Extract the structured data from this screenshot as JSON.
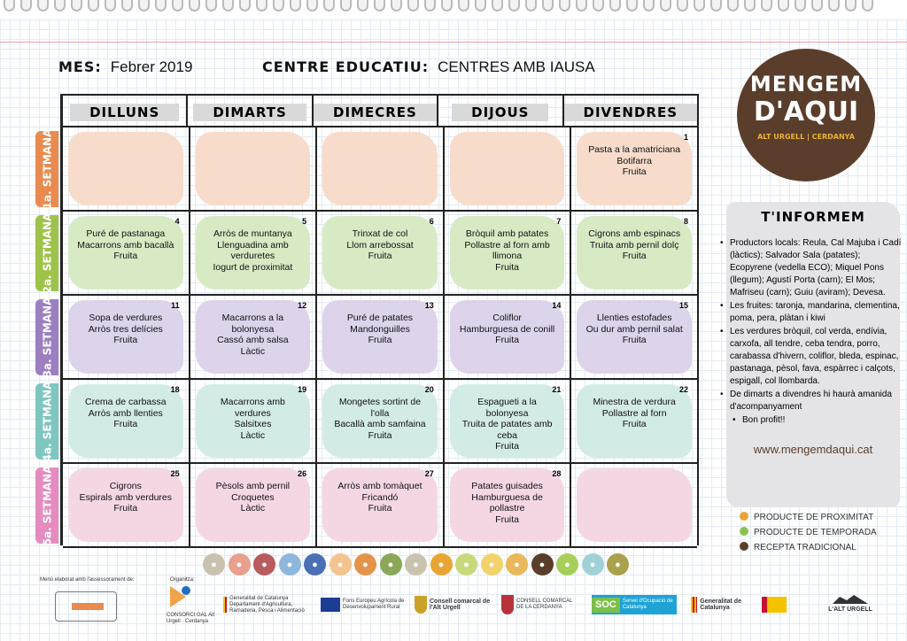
{
  "header": {
    "month_label": "MES:",
    "month_value": "Febrer 2019",
    "centre_label": "CENTRE EDUCATIU:",
    "centre_value": "CENTRES AMB IAUSA"
  },
  "days": [
    "DILLUNS",
    "DIMARTS",
    "DIMECRES",
    "DIJOUS",
    "DIVENDRES"
  ],
  "weeks": [
    {
      "label": "1a. SETMANA",
      "color": "#e98a4e",
      "bg": "#f7dccb",
      "cells": [
        {
          "num": "",
          "lines": []
        },
        {
          "num": "",
          "lines": []
        },
        {
          "num": "",
          "lines": []
        },
        {
          "num": "",
          "lines": []
        },
        {
          "num": "1",
          "lines": [
            "Pasta a la amatriciana",
            "Botifarra",
            "Fruita"
          ]
        }
      ]
    },
    {
      "label": "2a. SETMANA",
      "color": "#9dc34a",
      "bg": "#d8eac4",
      "cells": [
        {
          "num": "4",
          "lines": [
            "Puré de pastanaga",
            "Macarrons amb bacallà",
            "Fruita"
          ]
        },
        {
          "num": "5",
          "lines": [
            "Arròs de muntanya",
            "Llenguadina amb",
            "verduretes",
            "Iogurt de proximitat"
          ]
        },
        {
          "num": "6",
          "lines": [
            "Trinxat de col",
            "Llom arrebossat",
            "Fruita"
          ]
        },
        {
          "num": "7",
          "lines": [
            "Bròquil amb patates",
            "Pollastre al forn amb",
            "llimona",
            "Fruita"
          ]
        },
        {
          "num": "8",
          "lines": [
            "Cigrons amb espinacs",
            "Truita amb pernil dolç",
            "Fruita"
          ]
        }
      ]
    },
    {
      "label": "3a. SETMANA",
      "color": "#9c7fc1",
      "bg": "#ddd3ea",
      "cells": [
        {
          "num": "11",
          "lines": [
            "Sopa de verdures",
            "Arròs tres delícies",
            "Fruita"
          ]
        },
        {
          "num": "12",
          "lines": [
            "Macarrons a la",
            "bolonyesa",
            "Cassó amb salsa",
            "Làctic"
          ]
        },
        {
          "num": "13",
          "lines": [
            "Puré de patates",
            "Mandonguilles",
            "Fruita"
          ]
        },
        {
          "num": "14",
          "lines": [
            "Coliflor",
            "Hamburguesa de  conill",
            "Fruita"
          ]
        },
        {
          "num": "15",
          "lines": [
            "Llenties estofades",
            "Ou dur amb pernil salat",
            "Fruita"
          ]
        }
      ]
    },
    {
      "label": "4a. SETMANA",
      "color": "#7fc6c0",
      "bg": "#d3ebe7",
      "cells": [
        {
          "num": "18",
          "lines": [
            "Crema de carbassa",
            "Arròs amb llenties",
            "Fruita"
          ]
        },
        {
          "num": "19",
          "lines": [
            "Macarrons amb",
            "verdures",
            "Salsitxes",
            "Làctic"
          ]
        },
        {
          "num": "20",
          "lines": [
            "Mongetes sortint de",
            "l'olla",
            "Bacallà amb samfaina",
            "Fruita"
          ]
        },
        {
          "num": "21",
          "lines": [
            "Espagueti a la",
            "bolonyesa",
            "Truita de patates amb",
            "ceba",
            "Fruita"
          ]
        },
        {
          "num": "22",
          "lines": [
            "Minestra de verdura",
            "Pollastre al forn",
            "Fruita"
          ]
        }
      ]
    },
    {
      "label": "5a. SETMANA",
      "color": "#e58bc0",
      "bg": "#f5d7e4",
      "cells": [
        {
          "num": "25",
          "lines": [
            "Cigrons",
            "Espirals amb verdures",
            "Fruita"
          ]
        },
        {
          "num": "26",
          "lines": [
            "Pèsols amb pernil",
            "Croquetes",
            "Làctic"
          ]
        },
        {
          "num": "27",
          "lines": [
            "Arròs amb tomàquet",
            "Fricandó",
            "Fruita"
          ]
        },
        {
          "num": "28",
          "lines": [
            "Patates guisades",
            "Hamburguesa de",
            "pollastre",
            "Fruita"
          ]
        },
        {
          "num": "",
          "lines": []
        }
      ]
    }
  ],
  "logo": {
    "line1": "MENGEM",
    "line2": "D'AQUI",
    "line3": "ALT URGELL | CERDANYA"
  },
  "info": {
    "title": "T'INFORMEM",
    "items": [
      "Productors locals: Reula, Cal Majuba i Cadí (làctics); Salvador Sala (patates); Ecopyrene (vedella ECO); Miquel Pons (llegum); Agustí Porta (carn); El Mos; Mafriseu (carn); Guiu (aviram); Devesa.",
      "Les fruites: taronja, mandarina, clementina, poma, pera, plàtan i kiwi",
      "Les verdures bròquil, col verda, endívia, carxofa, all tendre, ceba tendra, porro, carabassa d'hivern, coliflor, bleda, espinac, pastanaga, pèsol, fava, espàrrec i calçots, espigall, col llombarda.",
      "De dimarts a divendres hi haurà amanida d'acompanyament"
    ],
    "sub_item": "Bon profit!!",
    "url": "www.mengemdaqui.cat"
  },
  "legend": [
    {
      "label": "PRODUCTE DE PROXIMITAT",
      "color": "#e9a534"
    },
    {
      "label": "PRODUCTE DE TEMPORADA",
      "color": "#8cc152"
    },
    {
      "label": "RECEPTA TRADICIONAL",
      "color": "#5a3e2b"
    }
  ],
  "food_icons": [
    "#c9c2ae",
    "#e8a08e",
    "#b85a5e",
    "#8fb7dc",
    "#4b6fb5",
    "#f3c48e",
    "#e3944a",
    "#8aa857",
    "#c9c2ae",
    "#e9a534",
    "#c7d97a",
    "#f2d36b",
    "#e9b85a",
    "#5a3e2b",
    "#a6cf5a",
    "#9fd1d6",
    "#a9a24a"
  ],
  "footer": {
    "advice": "Menú elaborat amb l'assessorament de:",
    "organitza": "Organitza:",
    "logos": [
      "CONSORCI GAL Alt Urgell · Cerdanya",
      "Generalitat de Catalunya Departament d'Agricultura, Ramaderia, Pesca i Alimentació",
      "Fons Europeu Agrícola de Desenvolupament Rural",
      "Consell comarcal de l'Alt Urgell",
      "CONSELL COMARCAL DE LA CERDANYA",
      "SOC",
      "Servei d'Ocupació de Catalunya",
      "Generalitat de Catalunya",
      "L'ALT URGELL"
    ]
  }
}
